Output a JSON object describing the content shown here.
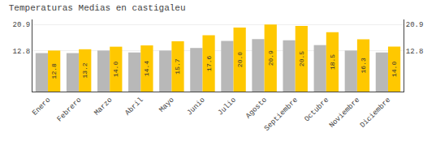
{
  "chart_data": {
    "type": "bar",
    "title": "Temperaturas Medias en castigaleu",
    "categories": [
      "Enero",
      "Febrero",
      "Marzo",
      "Abril",
      "Mayo",
      "Junio",
      "Julio",
      "Agosto",
      "Septiembre",
      "Octubre",
      "Noviembre",
      "Diciembre"
    ],
    "series": [
      {
        "color": "#B8B8B8",
        "values": [
          12.0,
          12.0,
          12.8,
          12.2,
          12.8,
          13.6,
          15.8,
          16.4,
          16.0,
          14.5,
          12.8,
          12.2
        ]
      },
      {
        "color": "#FFC800",
        "values": [
          12.8,
          13.2,
          14.0,
          14.4,
          15.7,
          17.6,
          20.0,
          20.9,
          20.5,
          18.5,
          16.3,
          14.0
        ],
        "value_labels": [
          "12.8",
          "13.2",
          "14.0",
          "14.4",
          "15.7",
          "17.6",
          "20.0",
          "20.9",
          "20.5",
          "18.5",
          "16.3",
          "14.0"
        ],
        "data_labels": true
      }
    ],
    "ylim": [
      0,
      22.5
    ],
    "yticks": [
      12.8,
      20.9
    ],
    "y2lim": [
      0,
      22.5
    ],
    "y2ticks": [
      12.8,
      20.9
    ],
    "grid": true
  }
}
